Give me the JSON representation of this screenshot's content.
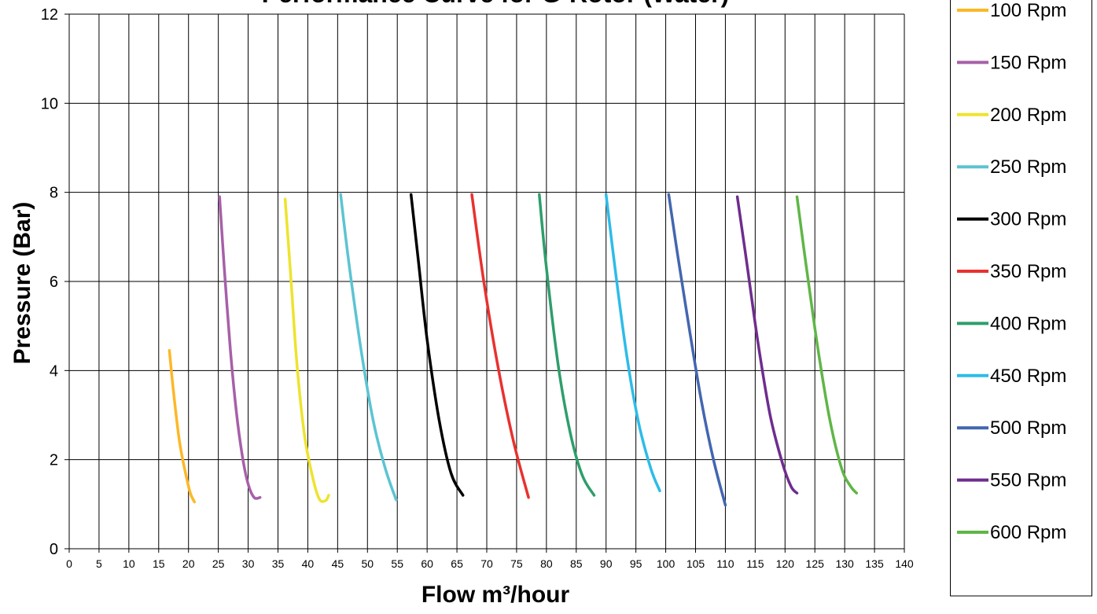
{
  "chart_data": {
    "type": "line",
    "title": "Performance Curve for G-Rotor (Water)",
    "xlabel": "Flow m³/hour",
    "ylabel": "Pressure (Bar)",
    "xlim": [
      0,
      140
    ],
    "ylim": [
      0,
      12
    ],
    "xticks": [
      "0",
      "5",
      "10",
      "15",
      "20",
      "25",
      "30",
      "35",
      "40",
      "45",
      "50",
      "55",
      "60",
      "65",
      "70",
      "75",
      "80",
      "85",
      "90",
      "95",
      "100",
      "105",
      "110",
      "115",
      "120",
      "125",
      "130",
      "135",
      "140"
    ],
    "yticks": [
      "0",
      "2",
      "4",
      "6",
      "8",
      "10",
      "12"
    ],
    "grid": true,
    "legend_position": "right",
    "series": [
      {
        "name": "100 Rpm",
        "color": "#FDB827",
        "x": [
          16.8,
          17.5,
          18.5,
          19.5,
          20.3,
          21.0
        ],
        "y": [
          4.45,
          3.5,
          2.4,
          1.7,
          1.25,
          1.05
        ]
      },
      {
        "name": "150 Rpm",
        "color": "#A660A8",
        "x": [
          25.2,
          26.0,
          27.0,
          28.0,
          29.0,
          30.0,
          31.0,
          32.0
        ],
        "y": [
          7.9,
          6.3,
          4.5,
          3.1,
          2.1,
          1.45,
          1.15,
          1.15
        ]
      },
      {
        "name": "200 Rpm",
        "color": "#EEE32E",
        "x": [
          36.2,
          37.2,
          38.2,
          39.5,
          41.0,
          42.0,
          43.0,
          43.5
        ],
        "y": [
          7.85,
          6.0,
          4.1,
          2.5,
          1.5,
          1.1,
          1.08,
          1.2
        ]
      },
      {
        "name": "250 Rpm",
        "color": "#5BC4D2",
        "x": [
          45.5,
          47.0,
          49.0,
          51.0,
          53.0,
          54.8
        ],
        "y": [
          7.95,
          6.3,
          4.4,
          2.85,
          1.8,
          1.1
        ]
      },
      {
        "name": "300 Rpm",
        "color": "#000000",
        "x": [
          57.3,
          58.5,
          60.0,
          62.0,
          64.0,
          66.0
        ],
        "y": [
          7.95,
          6.5,
          4.7,
          2.9,
          1.7,
          1.2
        ]
      },
      {
        "name": "350 Rpm",
        "color": "#E8312F",
        "x": [
          67.5,
          69.5,
          72.0,
          74.5,
          77.0
        ],
        "y": [
          7.95,
          6.0,
          4.0,
          2.4,
          1.15
        ]
      },
      {
        "name": "400 Rpm",
        "color": "#2E9E6B",
        "x": [
          78.8,
          80.0,
          82.0,
          84.0,
          86.0,
          88.0
        ],
        "y": [
          7.95,
          6.3,
          4.1,
          2.6,
          1.65,
          1.2
        ]
      },
      {
        "name": "450 Rpm",
        "color": "#2DBCE8",
        "x": [
          90.0,
          91.5,
          93.5,
          95.5,
          97.5,
          99.0
        ],
        "y": [
          7.95,
          6.3,
          4.3,
          2.8,
          1.8,
          1.3
        ]
      },
      {
        "name": "500 Rpm",
        "color": "#4366B0",
        "x": [
          100.5,
          102.0,
          104.0,
          106.0,
          108.0,
          110.0
        ],
        "y": [
          7.95,
          6.6,
          4.9,
          3.3,
          2.0,
          0.98
        ]
      },
      {
        "name": "550 Rpm",
        "color": "#6E2D8E",
        "x": [
          112.0,
          113.5,
          115.5,
          117.5,
          119.5,
          121.0,
          122.0
        ],
        "y": [
          7.9,
          6.5,
          4.6,
          3.0,
          1.95,
          1.4,
          1.25
        ]
      },
      {
        "name": "600 Rpm",
        "color": "#5FB646",
        "x": [
          122.0,
          123.5,
          125.5,
          127.5,
          129.5,
          131.0,
          132.0
        ],
        "y": [
          7.9,
          6.4,
          4.5,
          2.9,
          1.8,
          1.4,
          1.25
        ]
      }
    ]
  }
}
